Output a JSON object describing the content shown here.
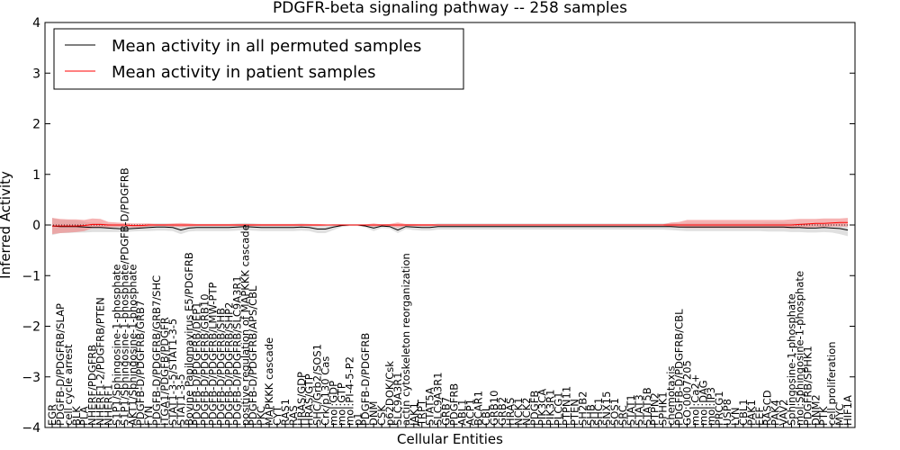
{
  "chart_data": {
    "type": "line",
    "title": "PDGFR-beta signaling pathway -- 258 samples",
    "xlabel": "Cellular Entities",
    "ylabel": "Inferred Activity",
    "ylim": [
      -4,
      4
    ],
    "yticks": [
      -4,
      -3,
      -2,
      -1,
      0,
      1,
      2,
      3,
      4
    ],
    "grid": false,
    "legend_position": "top-left",
    "colors": {
      "permuted": "#000000",
      "patient": "#ff0000",
      "permuted_band": "#d3d3d3",
      "patient_band": "#f08080"
    },
    "categories": [
      "EGR",
      "PDGFB-D/PDGFRB/SLAP",
      "cell cycle arrest",
      "BLK",
      "PLA",
      "NHERF/PDGFRB",
      "NHERF1-2/PDGFRB/PTEN",
      "NHERF1",
      "S1P1/Sphingosine-1-phosphate",
      "S1P1/Sphingosine-1-phosphate/PDGFB-D/PDGFRB",
      "AKT1/Sphingosine-1-phosphate",
      "PDGFB-D/PDGFRB/GRB7",
      "FYN",
      "PDGFB-D/PDGFRB/GRB7/SHC",
      "ITGA1/PDGFB/PDGFR",
      "STAT1-3-5/STAT1-3-5",
      "STAT1-3-5",
      "Bovine Papilomavirus E5/PDGFRB",
      "PDGFB-D/PDGFRB/DEP1",
      "PDGFB-D/PDGFRB/GRB10",
      "PDGFB-D/PDGFRB/LMW-PTP",
      "PDGFB-D/PDGFRB/SHB",
      "PDGFB-D/PDGFRB/SHP2",
      "PDGFB-D/PDGFRB/SLC9A3R1",
      "positive regulation of MAPKKK cascade",
      "PDGFB-D/PDGFRB/APS/CBL",
      "PKC",
      "MAPKKK cascade",
      "CYT",
      "RAS1",
      "RAS",
      "HRAS/GDP",
      "HRAS/GTP",
      "SHC/Grb2/SOS1",
      "Crk/p130 Cas",
      "mol:GDP",
      "mol:GTP",
      "mol:PI-4-5-P2",
      "p1",
      "PDGFB-D/PDGFRB",
      "DNM",
      "CSK",
      "p62DOK/Csk",
      "SLC9A3R1",
      "actin cytoskeleton reorganization",
      "JAK1",
      "TRPT",
      "STAT5A",
      "SLC9A3R1",
      "GRB7",
      "PDGFRB",
      "ABL1",
      "ACP1",
      "BCAR1",
      "CBL",
      "GRB10",
      "GRB2",
      "HRAS",
      "NCK1",
      "NCK2",
      "PDGFB",
      "PIK3CA",
      "PIK3R1",
      "PLCG1",
      "PTPN11",
      "PTEN",
      "SH2B2",
      "SHB",
      "SHC1",
      "SNX15",
      "SOS1",
      "SRC",
      "STAT1",
      "STAT3",
      "STAT5B",
      "PTPN2",
      "SPHK1",
      "chemotaxis",
      "PDGFB-D/PDGFRB/CBL",
      "GO:0007205",
      "mol:Ca2+",
      "mol:DAG",
      "mol:IP3",
      "PRCG1",
      "USP8",
      "LYN",
      "CBL1",
      "PAK1",
      "EEF",
      "RASCD",
      "PAK4",
      "VAV2",
      "Sphingosine-1-phosphate",
      "mol:Sphingosine-1-phosphate",
      "PDGFRB/SPHK1",
      "DNM2",
      "PTK",
      "cell proliferation",
      "MYC",
      "HIF1A"
    ],
    "series": [
      {
        "name": "Mean activity in all permuted samples",
        "values": [
          -0.02,
          -0.03,
          -0.03,
          -0.03,
          -0.04,
          -0.05,
          -0.05,
          -0.06,
          -0.07,
          -0.08,
          -0.07,
          -0.06,
          -0.05,
          -0.04,
          -0.04,
          -0.05,
          -0.1,
          -0.06,
          -0.05,
          -0.05,
          -0.05,
          -0.05,
          -0.05,
          -0.04,
          -0.03,
          -0.04,
          -0.05,
          -0.05,
          -0.05,
          -0.05,
          -0.05,
          -0.04,
          -0.05,
          -0.08,
          -0.08,
          -0.04,
          -0.01,
          0.0,
          0.0,
          -0.02,
          -0.06,
          -0.02,
          -0.03,
          -0.1,
          -0.03,
          -0.04,
          -0.05,
          -0.05,
          -0.03,
          -0.03,
          -0.03,
          -0.03,
          -0.03,
          -0.03,
          -0.03,
          -0.03,
          -0.03,
          -0.03,
          -0.03,
          -0.03,
          -0.03,
          -0.03,
          -0.03,
          -0.03,
          -0.03,
          -0.03,
          -0.03,
          -0.03,
          -0.03,
          -0.03,
          -0.03,
          -0.03,
          -0.03,
          -0.03,
          -0.03,
          -0.03,
          -0.03,
          -0.03,
          -0.04,
          -0.04,
          -0.04,
          -0.04,
          -0.04,
          -0.04,
          -0.04,
          -0.04,
          -0.04,
          -0.04,
          -0.04,
          -0.04,
          -0.04,
          -0.04,
          -0.05,
          -0.05,
          -0.06,
          -0.06,
          -0.05,
          -0.06,
          -0.07,
          -0.1
        ],
        "lower": [
          -0.2,
          -0.16,
          -0.16,
          -0.15,
          -0.15,
          -0.14,
          -0.14,
          -0.14,
          -0.14,
          -0.14,
          -0.13,
          -0.12,
          -0.12,
          -0.11,
          -0.11,
          -0.12,
          -0.18,
          -0.13,
          -0.12,
          -0.12,
          -0.12,
          -0.12,
          -0.12,
          -0.11,
          -0.1,
          -0.11,
          -0.12,
          -0.12,
          -0.12,
          -0.12,
          -0.12,
          -0.11,
          -0.12,
          -0.16,
          -0.16,
          -0.1,
          -0.04,
          -0.02,
          -0.02,
          -0.05,
          -0.12,
          -0.06,
          -0.07,
          -0.16,
          -0.08,
          -0.1,
          -0.11,
          -0.11,
          -0.09,
          -0.09,
          -0.09,
          -0.09,
          -0.09,
          -0.09,
          -0.09,
          -0.09,
          -0.09,
          -0.09,
          -0.09,
          -0.09,
          -0.09,
          -0.09,
          -0.09,
          -0.09,
          -0.09,
          -0.09,
          -0.09,
          -0.09,
          -0.09,
          -0.09,
          -0.09,
          -0.09,
          -0.09,
          -0.09,
          -0.09,
          -0.09,
          -0.09,
          -0.1,
          -0.11,
          -0.12,
          -0.12,
          -0.12,
          -0.12,
          -0.12,
          -0.12,
          -0.12,
          -0.12,
          -0.12,
          -0.12,
          -0.13,
          -0.13,
          -0.13,
          -0.14,
          -0.14,
          -0.15,
          -0.15,
          -0.14,
          -0.15,
          -0.18,
          -0.22
        ],
        "upper": [
          0.14,
          0.1,
          0.1,
          0.09,
          0.07,
          0.04,
          0.04,
          0.02,
          0.0,
          -0.02,
          -0.01,
          0.0,
          0.02,
          0.03,
          0.03,
          0.02,
          -0.02,
          0.01,
          0.02,
          0.02,
          0.02,
          0.02,
          0.02,
          0.03,
          0.04,
          0.03,
          0.02,
          0.02,
          0.02,
          0.02,
          0.02,
          0.03,
          0.02,
          0.0,
          0.0,
          0.02,
          0.02,
          0.02,
          0.02,
          0.01,
          0.0,
          0.02,
          0.01,
          -0.04,
          0.02,
          0.02,
          0.01,
          0.01,
          0.03,
          0.03,
          0.03,
          0.03,
          0.03,
          0.03,
          0.03,
          0.03,
          0.03,
          0.03,
          0.03,
          0.03,
          0.03,
          0.03,
          0.03,
          0.03,
          0.03,
          0.03,
          0.03,
          0.03,
          0.03,
          0.03,
          0.03,
          0.03,
          0.03,
          0.03,
          0.03,
          0.03,
          0.03,
          0.04,
          0.03,
          0.04,
          0.04,
          0.04,
          0.04,
          0.04,
          0.04,
          0.04,
          0.04,
          0.04,
          0.04,
          0.05,
          0.05,
          0.05,
          0.04,
          0.04,
          0.03,
          0.03,
          0.04,
          0.03,
          0.04,
          0.02
        ]
      },
      {
        "name": "Mean activity in patient samples",
        "values": [
          -0.02,
          -0.02,
          -0.02,
          -0.02,
          -0.01,
          0.01,
          0.01,
          0.0,
          0.0,
          0.0,
          -0.01,
          -0.01,
          0.0,
          0.0,
          0.0,
          0.0,
          0.0,
          0.0,
          0.0,
          0.0,
          0.0,
          0.0,
          0.0,
          0.0,
          0.0,
          0.0,
          0.0,
          0.0,
          0.0,
          0.0,
          0.0,
          0.0,
          0.0,
          0.0,
          0.0,
          0.0,
          0.0,
          0.0,
          0.0,
          0.0,
          0.0,
          0.0,
          0.0,
          0.0,
          0.0,
          0.0,
          0.0,
          0.0,
          0.0,
          0.0,
          0.0,
          0.0,
          0.0,
          0.0,
          0.0,
          0.0,
          0.0,
          0.0,
          0.0,
          0.0,
          0.0,
          0.0,
          0.0,
          0.0,
          0.0,
          0.0,
          0.0,
          0.0,
          0.0,
          0.0,
          0.0,
          0.0,
          0.0,
          0.0,
          0.0,
          0.0,
          0.0,
          0.0,
          0.0,
          0.0,
          0.0,
          0.0,
          0.0,
          0.0,
          0.0,
          0.0,
          0.0,
          0.0,
          0.0,
          0.0,
          0.0,
          0.0,
          0.0,
          0.01,
          0.02,
          0.03,
          0.03,
          0.04,
          0.05,
          0.05
        ],
        "lower": [
          -0.18,
          -0.16,
          -0.15,
          -0.14,
          -0.12,
          -0.06,
          -0.06,
          -0.05,
          -0.04,
          -0.04,
          -0.05,
          -0.05,
          -0.03,
          -0.02,
          -0.02,
          -0.03,
          -0.04,
          -0.03,
          -0.02,
          -0.02,
          -0.02,
          -0.02,
          -0.02,
          -0.02,
          -0.02,
          -0.02,
          -0.02,
          -0.02,
          -0.02,
          -0.02,
          -0.02,
          -0.02,
          -0.02,
          -0.02,
          -0.01,
          0.0,
          0.0,
          0.0,
          0.0,
          -0.01,
          -0.03,
          -0.01,
          -0.02,
          -0.05,
          -0.02,
          -0.02,
          -0.02,
          -0.02,
          -0.01,
          -0.01,
          -0.01,
          -0.01,
          -0.01,
          -0.01,
          -0.01,
          -0.01,
          -0.01,
          -0.01,
          -0.01,
          -0.01,
          -0.01,
          -0.01,
          -0.01,
          -0.01,
          -0.01,
          -0.01,
          -0.01,
          -0.01,
          -0.01,
          -0.01,
          -0.01,
          -0.01,
          -0.01,
          -0.01,
          -0.01,
          -0.01,
          -0.01,
          -0.04,
          -0.05,
          -0.06,
          -0.06,
          -0.06,
          -0.06,
          -0.06,
          -0.06,
          -0.06,
          -0.06,
          -0.06,
          -0.06,
          -0.06,
          -0.06,
          -0.06,
          -0.07,
          -0.06,
          -0.05,
          -0.04,
          -0.04,
          -0.03,
          -0.03,
          -0.03
        ],
        "upper": [
          0.14,
          0.12,
          0.11,
          0.11,
          0.1,
          0.13,
          0.12,
          0.06,
          0.05,
          0.04,
          0.03,
          0.03,
          0.03,
          0.02,
          0.02,
          0.03,
          0.04,
          0.03,
          0.02,
          0.02,
          0.02,
          0.02,
          0.02,
          0.02,
          0.02,
          0.02,
          0.02,
          0.02,
          0.02,
          0.02,
          0.02,
          0.02,
          0.02,
          0.02,
          0.01,
          0.0,
          0.0,
          0.0,
          0.0,
          0.01,
          0.03,
          0.01,
          0.02,
          0.05,
          0.02,
          0.02,
          0.02,
          0.02,
          0.01,
          0.01,
          0.01,
          0.01,
          0.01,
          0.01,
          0.01,
          0.01,
          0.01,
          0.01,
          0.01,
          0.01,
          0.01,
          0.01,
          0.01,
          0.01,
          0.01,
          0.01,
          0.01,
          0.01,
          0.01,
          0.01,
          0.01,
          0.01,
          0.01,
          0.01,
          0.01,
          0.01,
          0.01,
          0.05,
          0.06,
          0.1,
          0.1,
          0.1,
          0.1,
          0.1,
          0.1,
          0.1,
          0.1,
          0.1,
          0.1,
          0.1,
          0.1,
          0.1,
          0.11,
          0.12,
          0.12,
          0.12,
          0.13,
          0.13,
          0.13,
          0.14
        ]
      }
    ]
  }
}
